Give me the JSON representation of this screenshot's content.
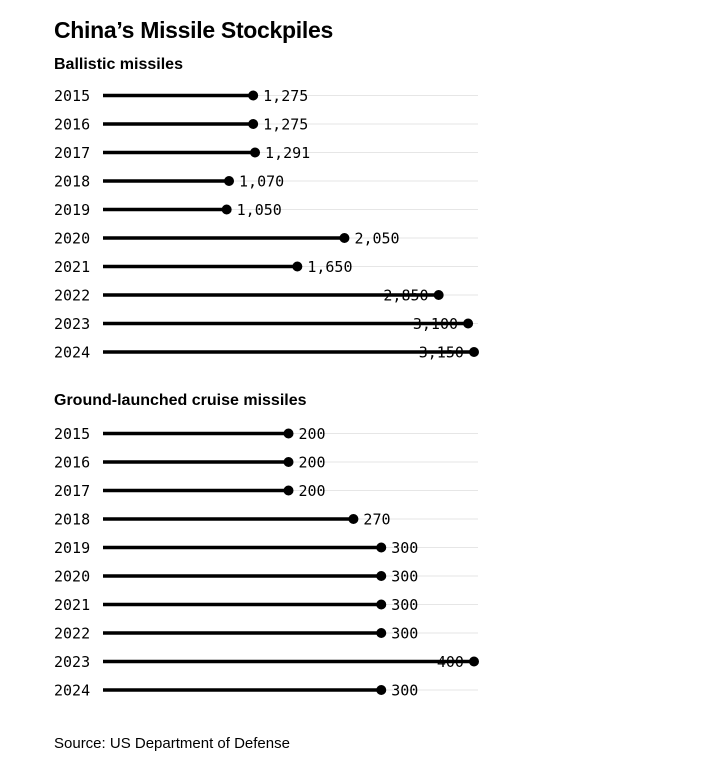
{
  "title": "China’s Missile Stockpiles",
  "source": "Source: US Department of Defense",
  "chart_data": [
    {
      "type": "bar",
      "subtitle": "Ballistic missiles",
      "categories": [
        "2015",
        "2016",
        "2017",
        "2018",
        "2019",
        "2020",
        "2021",
        "2022",
        "2023",
        "2024"
      ],
      "values": [
        1275,
        1275,
        1291,
        1070,
        1050,
        2050,
        1650,
        2850,
        3100,
        3150
      ],
      "value_labels": [
        "1,275",
        "1,275",
        "1,291",
        "1,070",
        "1,050",
        "2,050",
        "1,650",
        "2,850",
        "3,100",
        "3,150"
      ],
      "xlim": [
        0,
        3150
      ],
      "orientation": "horizontal",
      "style": "lollipop",
      "grid": true
    },
    {
      "type": "bar",
      "subtitle": "Ground-launched cruise missiles",
      "categories": [
        "2015",
        "2016",
        "2017",
        "2018",
        "2019",
        "2020",
        "2021",
        "2022",
        "2023",
        "2024"
      ],
      "values": [
        200,
        200,
        200,
        270,
        300,
        300,
        300,
        300,
        400,
        300
      ],
      "value_labels": [
        "200",
        "200",
        "200",
        "270",
        "300",
        "300",
        "300",
        "300",
        "400",
        "300"
      ],
      "xlim": [
        0,
        400
      ],
      "orientation": "horizontal",
      "style": "lollipop",
      "grid": true
    }
  ],
  "colors": {
    "line": "#000000",
    "grid": "#e6e6e6",
    "label_halo": "#ffffff"
  }
}
